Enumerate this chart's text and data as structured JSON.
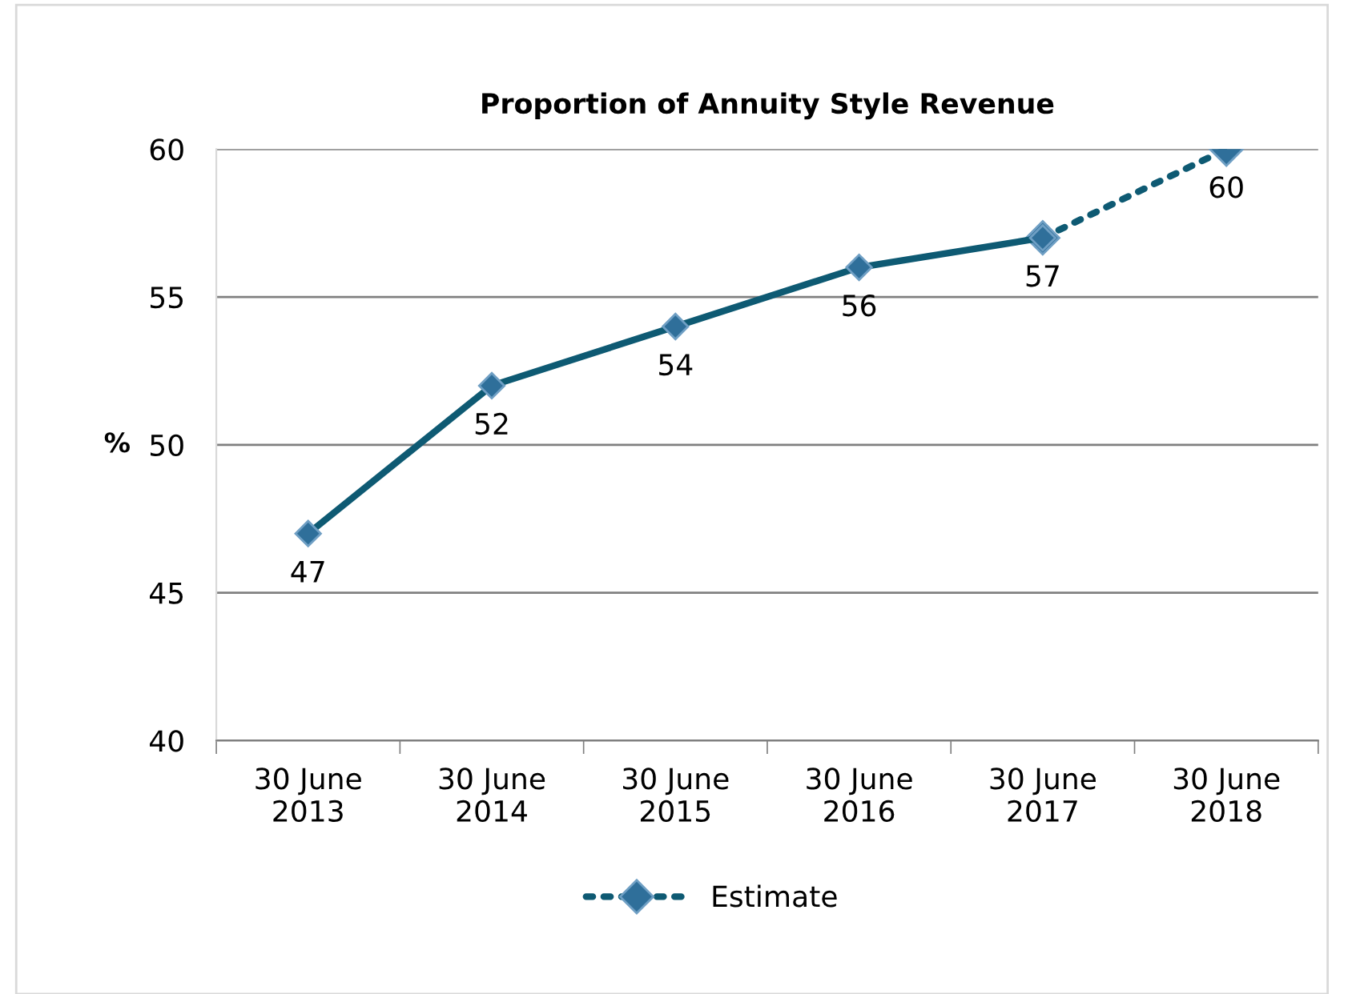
{
  "chart_data": {
    "type": "line",
    "title": "Proportion of Annuity Style Revenue",
    "ylabel": "%",
    "categories": [
      "30 June\n2013",
      "30 June\n2014",
      "30 June\n2015",
      "30 June\n2016",
      "30 June\n2017",
      "30 June\n2018"
    ],
    "series": [
      {
        "color": "#0e5a73",
        "values": [
          47,
          52,
          54,
          56,
          57,
          null
        ],
        "line_style": "solid",
        "value_labels": [
          "47",
          "52",
          "54",
          "56",
          "57",
          null
        ]
      },
      {
        "name": "Estimate",
        "color": "#0e5a73",
        "values": [
          null,
          null,
          null,
          null,
          57,
          60
        ],
        "line_style": "dotted",
        "value_labels": [
          null,
          null,
          null,
          null,
          null,
          "60"
        ]
      }
    ],
    "ylim": [
      40,
      60
    ],
    "yticks": [
      40,
      45,
      50,
      55,
      60
    ],
    "grid": "y",
    "marker": "diamond",
    "legend": "bottom"
  }
}
